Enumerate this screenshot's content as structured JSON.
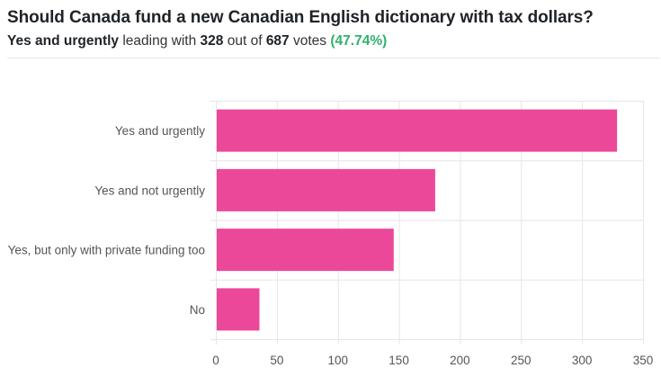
{
  "question": "Should Canada fund a new Canadian English dictionary with tax dollars?",
  "summary": {
    "leader": "Yes and urgently",
    "leading_with_text": "leading with",
    "count": "328",
    "out_of_text": "out of",
    "total": "687",
    "votes_text": "votes",
    "percent": "(47.74%)"
  },
  "colors": {
    "bar": "#ec4899",
    "grid": "#e6e6e6",
    "percent": "#2fb26a"
  },
  "chart_data": {
    "type": "bar",
    "orientation": "horizontal",
    "categories": [
      "Yes and urgently",
      "Yes and not urgently",
      "Yes, but only with private funding too",
      "No"
    ],
    "values": [
      328,
      179,
      145,
      35
    ],
    "xlim": [
      0,
      350
    ],
    "xticks": [
      0,
      50,
      100,
      150,
      200,
      250,
      300,
      350
    ],
    "grid": true,
    "title": "",
    "xlabel": "",
    "ylabel": ""
  }
}
